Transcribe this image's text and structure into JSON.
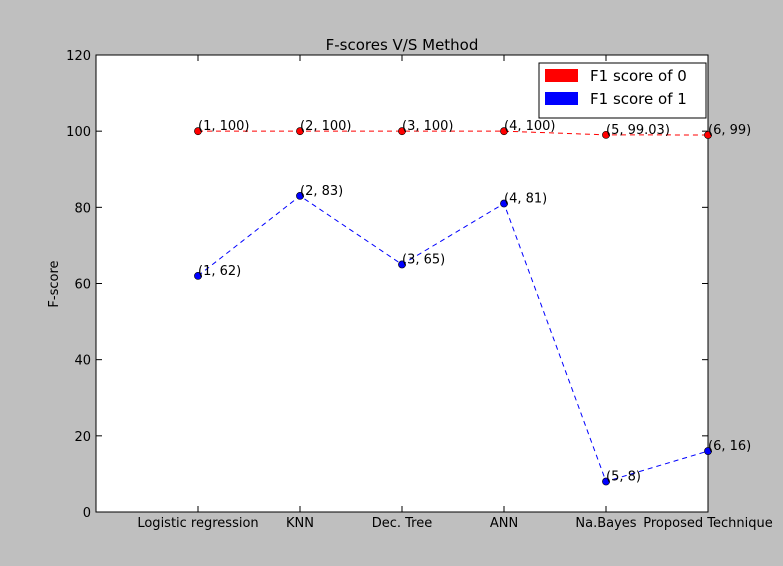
{
  "chart_data": {
    "type": "line",
    "title": "F-scores V/S Method",
    "xlabel": "",
    "ylabel": "F-score",
    "categories": [
      "Logistic regression",
      "KNN",
      "Dec. Tree",
      "ANN",
      "Na.Bayes",
      "Proposed Technique"
    ],
    "x": [
      1,
      2,
      3,
      4,
      5,
      6
    ],
    "xlim": [
      0,
      6
    ],
    "ylim": [
      0,
      120
    ],
    "yticks": [
      0,
      20,
      40,
      60,
      80,
      100,
      120
    ],
    "grid": false,
    "legend_position": "top-right",
    "series": [
      {
        "name": "F1 score of 0",
        "color": "#ff0000",
        "line_style": "dashed",
        "values": [
          100,
          100,
          100,
          100,
          99.03,
          99
        ],
        "point_labels": [
          "(1, 100)",
          "(2, 100)",
          "(3, 100)",
          "(4, 100)",
          "(5, 99.03)",
          "(6, 99)"
        ]
      },
      {
        "name": "F1 score of 1",
        "color": "#0000ff",
        "line_style": "dashed",
        "values": [
          62,
          83,
          65,
          81,
          8,
          16
        ],
        "point_labels": [
          "(1, 62)",
          "(2, 83)",
          "(3, 65)",
          "(4, 81)",
          "(5, 8)",
          "(6, 16)"
        ]
      }
    ]
  }
}
